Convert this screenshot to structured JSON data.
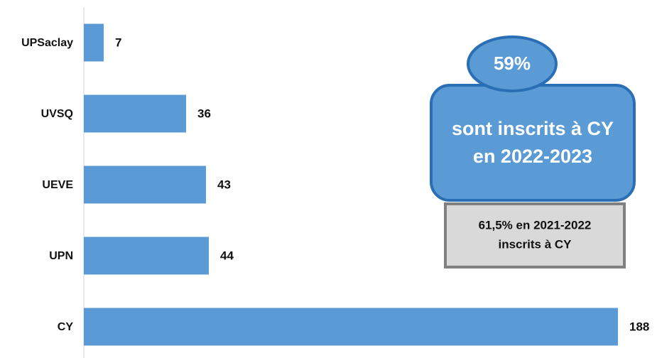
{
  "chart_data": {
    "type": "bar",
    "orientation": "horizontal",
    "categories": [
      "UPSaclay",
      "UVSQ",
      "UEVE",
      "UPN",
      "CY"
    ],
    "values": [
      7,
      36,
      43,
      44,
      188
    ],
    "color": "#5b9bd5",
    "annotations": {
      "badge": "59%",
      "callout": [
        "sont inscrits à CY",
        "en 2022-2023"
      ],
      "note": [
        "61,5% en 2021-2022",
        "inscrits à CY"
      ]
    }
  }
}
